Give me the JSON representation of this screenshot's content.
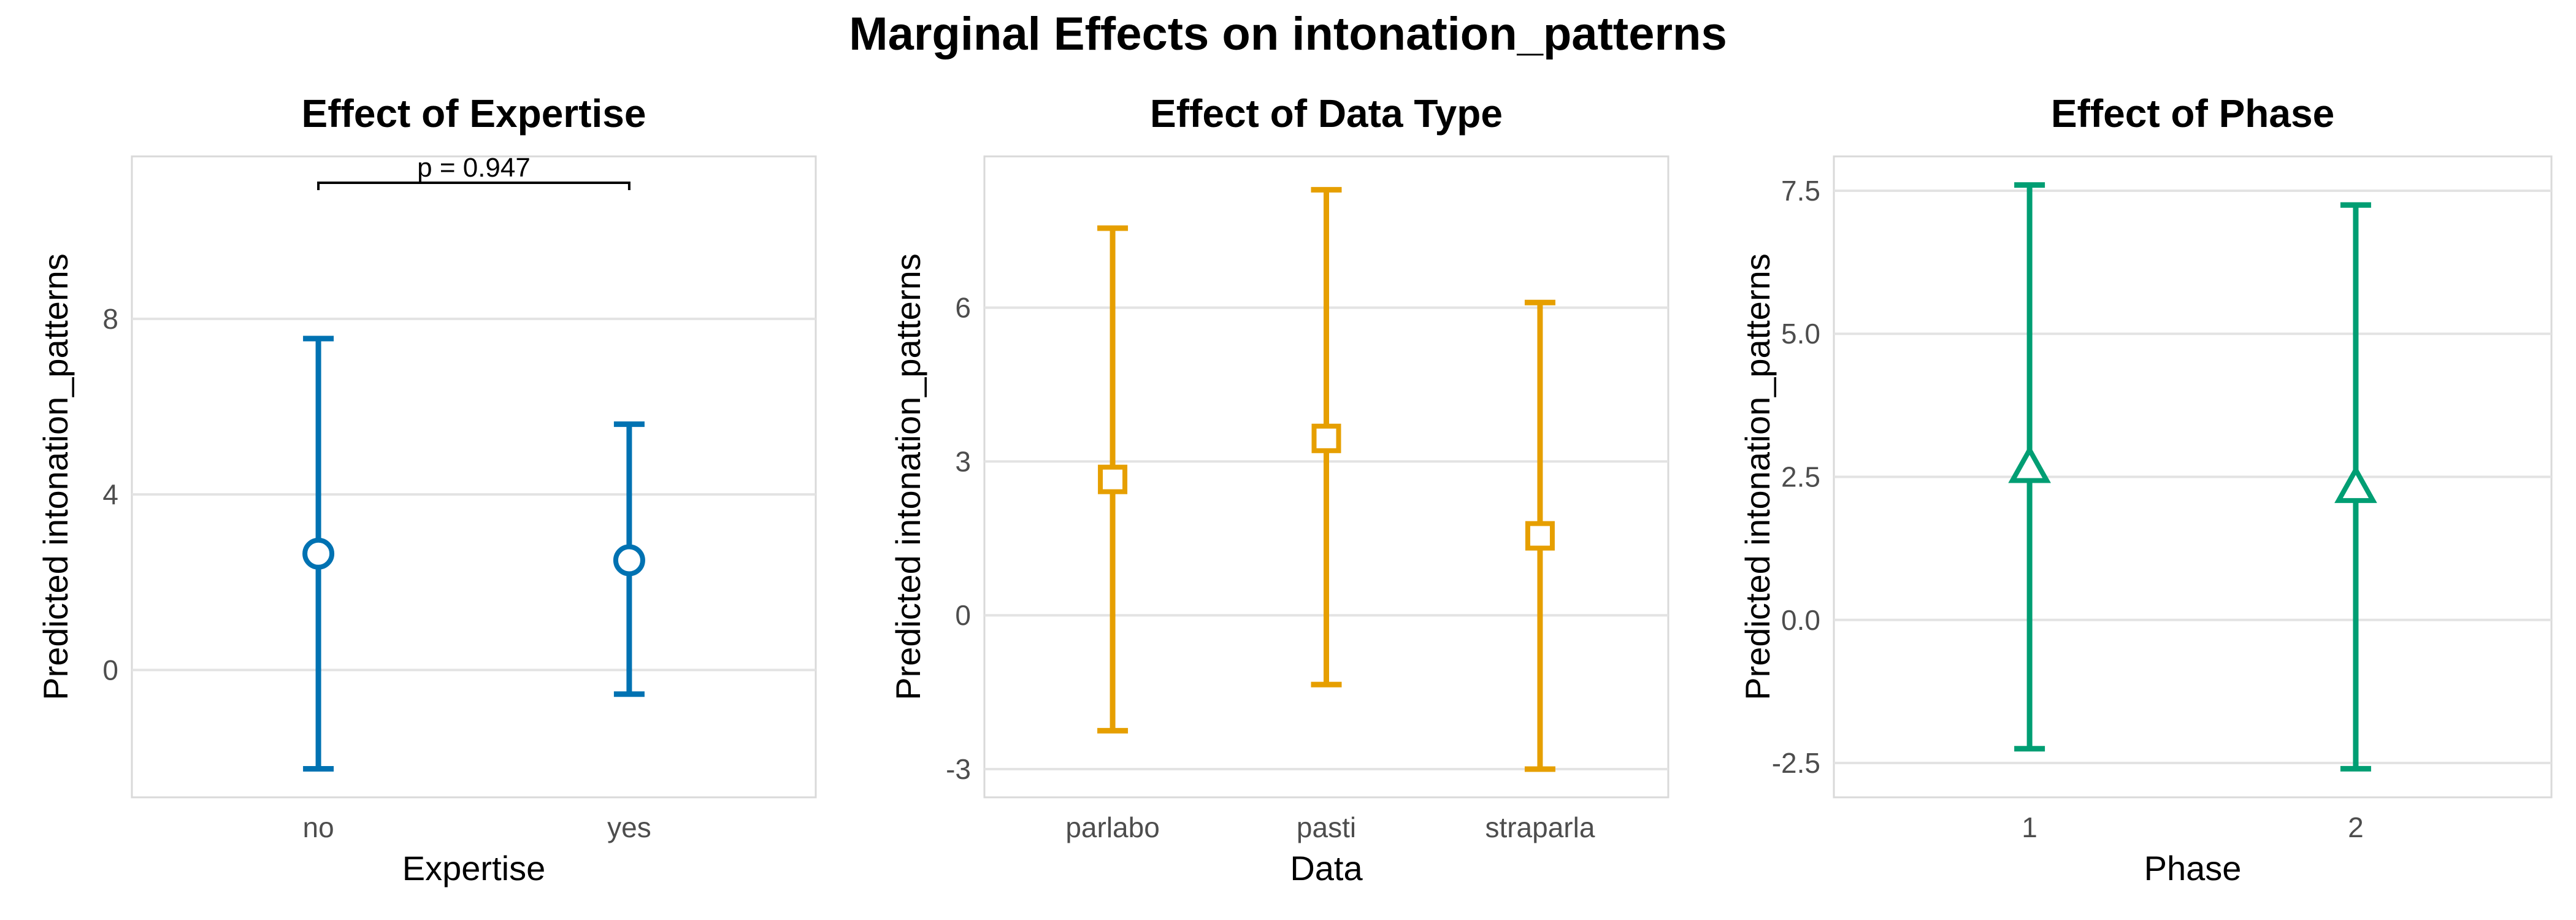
{
  "figure": {
    "title": "Marginal Effects on intonation_patterns"
  },
  "chart_data": [
    {
      "type": "errorbar",
      "title": "Effect of Expertise",
      "xlabel": "Expertise",
      "ylabel": "Predicted intonation_patterns",
      "categories": [
        "no",
        "yes"
      ],
      "estimate": [
        2.65,
        2.5
      ],
      "lower": [
        -2.25,
        -0.55
      ],
      "upper": [
        7.55,
        5.6
      ],
      "ylim": [
        -2.9,
        11.7
      ],
      "yticks": [
        0,
        4,
        8
      ],
      "ytick_labels": [
        "0",
        "4",
        "8"
      ],
      "grid": true,
      "marker": "circle",
      "color": "#0072B2",
      "annotation": {
        "text": "p = 0.947",
        "between": [
          "no",
          "yes"
        ],
        "y": 11.1
      }
    },
    {
      "type": "errorbar",
      "title": "Effect of Data Type",
      "xlabel": "Data",
      "ylabel": "Predicted intonation_patterns",
      "categories": [
        "parlabo",
        "pasti",
        "straparla"
      ],
      "estimate": [
        2.65,
        3.45,
        1.55
      ],
      "lower": [
        -2.25,
        -1.35,
        -3.0
      ],
      "upper": [
        7.55,
        8.3,
        6.1
      ],
      "ylim": [
        -3.55,
        8.95
      ],
      "yticks": [
        -3,
        0,
        3,
        6
      ],
      "ytick_labels": [
        "-3",
        "0",
        "3",
        "6"
      ],
      "grid": true,
      "marker": "square",
      "color": "#E69F00"
    },
    {
      "type": "errorbar",
      "title": "Effect of Phase",
      "xlabel": "Phase",
      "ylabel": "Predicted intonation_patterns",
      "categories": [
        "1",
        "2"
      ],
      "estimate": [
        2.65,
        2.3
      ],
      "lower": [
        -2.25,
        -2.6
      ],
      "upper": [
        7.6,
        7.25
      ],
      "ylim": [
        -3.1,
        8.1
      ],
      "yticks": [
        -2.5,
        0,
        2.5,
        5,
        7.5
      ],
      "ytick_labels": [
        "-2.5",
        "0.0",
        "2.5",
        "5.0",
        "7.5"
      ],
      "grid": true,
      "marker": "triangle",
      "color": "#009E73"
    }
  ]
}
